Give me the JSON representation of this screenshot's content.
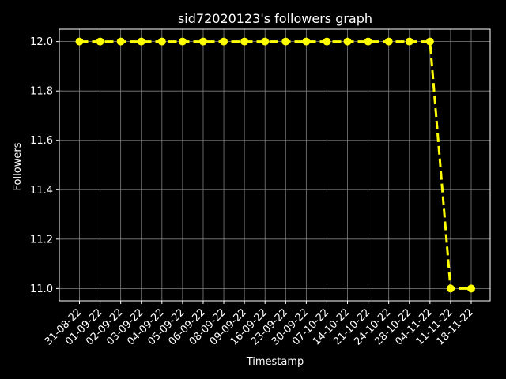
{
  "chart_data": {
    "type": "line",
    "title": "sid72020123's followers graph",
    "xlabel": "Timestamp",
    "ylabel": "Followers",
    "categories": [
      "31-08-22",
      "01-09-22",
      "02-09-22",
      "03-09-22",
      "04-09-22",
      "05-09-22",
      "06-09-22",
      "08-09-22",
      "09-09-22",
      "16-09-22",
      "23-09-22",
      "30-09-22",
      "07-10-22",
      "14-10-22",
      "21-10-22",
      "24-10-22",
      "28-10-22",
      "04-11-22",
      "11-11-22",
      "18-11-22"
    ],
    "series": [
      {
        "values": [
          12,
          12,
          12,
          12,
          12,
          12,
          12,
          12,
          12,
          12,
          12,
          12,
          12,
          12,
          12,
          12,
          12,
          12,
          11,
          11
        ]
      }
    ],
    "yticks": [
      11.0,
      11.2,
      11.4,
      11.6,
      11.8,
      12.0
    ],
    "ylim": [
      10.95,
      12.05
    ],
    "grid": true,
    "legend": "none",
    "line_style": "dashed",
    "marker": "circle"
  },
  "colors": {
    "background": "#000000",
    "line": "#ffff00",
    "grid": "#808080",
    "axis": "#ffffff",
    "text": "#ffffff"
  }
}
